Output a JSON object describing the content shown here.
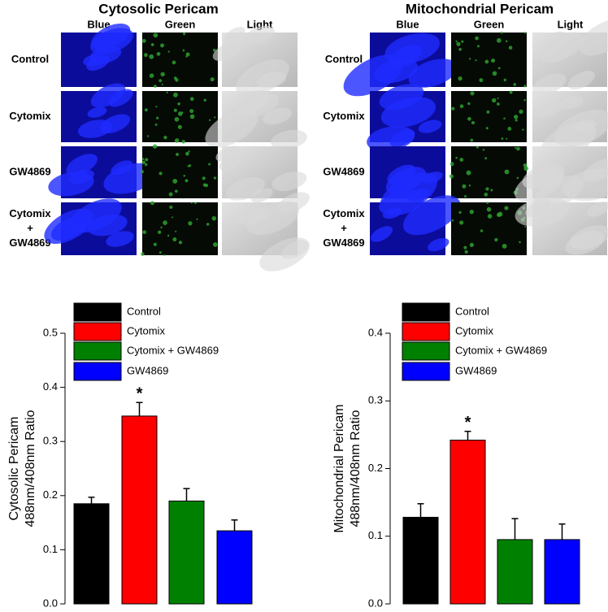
{
  "image_panels": [
    {
      "title": "Cytosolic Pericam",
      "columns": [
        "Blue",
        "Green",
        "Light"
      ],
      "rows": [
        [
          "Control"
        ],
        [
          "Cytomix"
        ],
        [
          "GW4869"
        ],
        [
          "Cytomix",
          "+",
          "GW4869"
        ]
      ]
    },
    {
      "title": "Mitochondrial Pericam",
      "columns": [
        "Blue",
        "Green",
        "Light"
      ],
      "rows": [
        [
          "Control"
        ],
        [
          "Cytomix"
        ],
        [
          "GW4869"
        ],
        [
          "Cytomix",
          "+",
          "GW4869"
        ]
      ]
    }
  ],
  "chart_data": [
    {
      "type": "bar",
      "ylabel": [
        "Cytosolic Pericam",
        "488nm/408nm Ratio"
      ],
      "categories": [
        "Control",
        "Cytomix",
        "Cytomix + GW4869",
        "GW4869"
      ],
      "values": [
        0.185,
        0.347,
        0.19,
        0.135
      ],
      "errors": [
        0.012,
        0.025,
        0.023,
        0.02
      ],
      "value_annotations": [
        null,
        "*",
        null,
        null
      ],
      "colors": [
        "#000000",
        "#ff0000",
        "#008000",
        "#0000ff"
      ],
      "ylim": [
        0,
        0.5
      ],
      "yticks": [
        {
          "value": 0,
          "label": "0.0"
        },
        0.1,
        0.2,
        0.3,
        0.4,
        0.5
      ]
    },
    {
      "type": "bar",
      "ylabel": [
        "Mitochondrial Pericam",
        "488nm/408nm Ratio"
      ],
      "categories": [
        "Control",
        "Cytomix",
        "Cytomix + GW4869",
        "GW4869"
      ],
      "values": [
        0.128,
        0.242,
        0.095,
        0.095
      ],
      "errors": [
        0.02,
        0.013,
        0.031,
        0.023
      ],
      "value_annotations": [
        null,
        "*",
        null,
        null
      ],
      "colors": [
        "#000000",
        "#ff0000",
        "#008000",
        "#0000ff"
      ],
      "ylim": [
        0,
        0.4
      ],
      "yticks": [
        {
          "value": 0,
          "label": "0.0"
        },
        0.1,
        0.2,
        0.3,
        0.4
      ]
    }
  ]
}
